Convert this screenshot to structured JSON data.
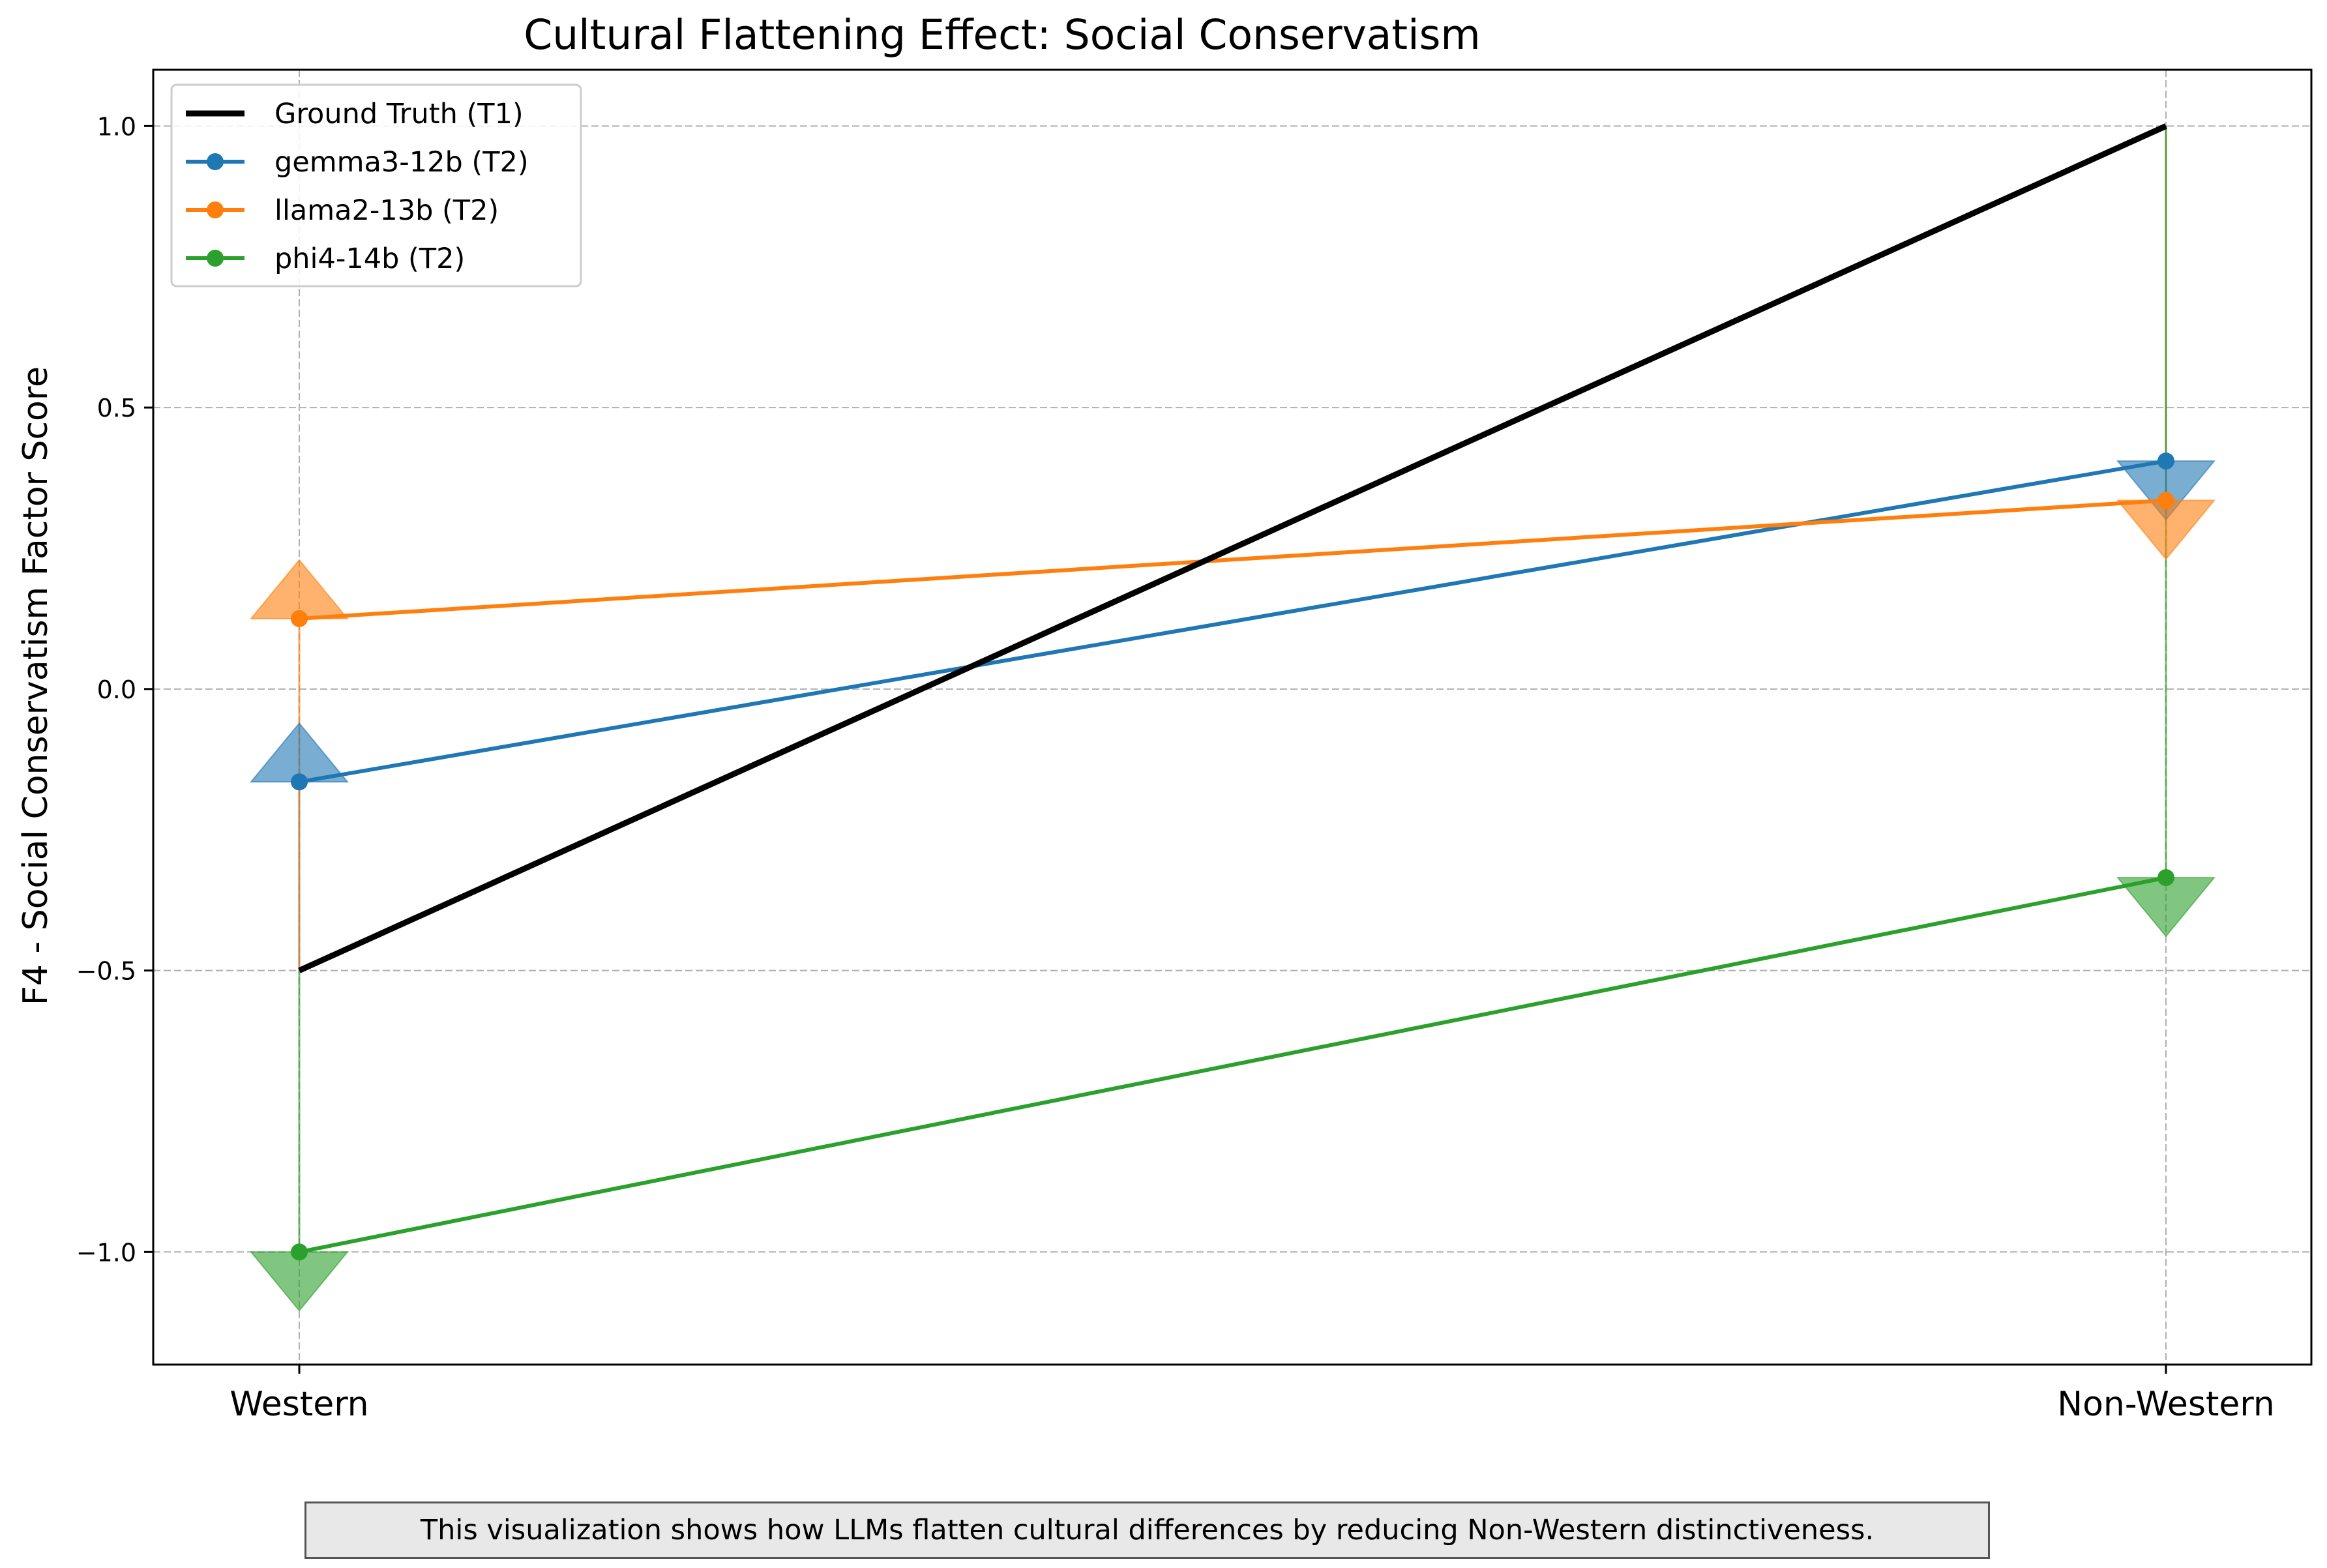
{
  "chart_data": {
    "type": "line",
    "title": "Cultural Flattening Effect: Social Conservatism",
    "xlabel": "",
    "ylabel": "F4 - Social Conservatism Factor Score",
    "categories": [
      "Western",
      "Non-Western"
    ],
    "ylim": [
      -1.2,
      1.1
    ],
    "yticks": [
      -1.0,
      -0.5,
      0.0,
      0.5,
      1.0
    ],
    "ytick_labels": [
      "−1.0",
      "−0.5",
      "0.0",
      "0.5",
      "1.0"
    ],
    "grid": true,
    "legend_position": "top-left",
    "ground_truth": {
      "name": "Ground Truth (T1)",
      "color": "#000000",
      "values": [
        -0.5,
        1.0
      ]
    },
    "series": [
      {
        "name": "gemma3-12b (T2)",
        "color": "#1f77b4",
        "values": [
          -0.165,
          0.405
        ]
      },
      {
        "name": "llama2-13b (T2)",
        "color": "#ff7f0e",
        "values": [
          0.125,
          0.335
        ]
      },
      {
        "name": "phi4-14b (T2)",
        "color": "#2ca02c",
        "values": [
          -1.0,
          -0.335
        ]
      }
    ]
  },
  "caption": "This visualization shows how LLMs flatten cultural differences by reducing Non-Western distinctiveness."
}
